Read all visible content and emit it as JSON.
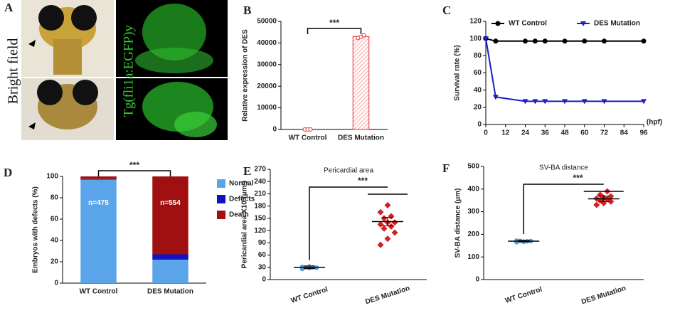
{
  "panel_a": {
    "label": "A",
    "bright_field": "Bright field",
    "fluorescence": "Tg(fli1a:EGFP)y"
  },
  "chart_data": [
    {
      "type": "bar",
      "label": "B",
      "ylabel": "Relative expression of DES",
      "categories": [
        "WT Control",
        "DES Mutation"
      ],
      "values": [
        0,
        43000
      ],
      "points": [
        [
          0,
          0,
          0
        ],
        [
          42300,
          42800,
          43600
        ]
      ],
      "color": "#e03030",
      "ylim": [
        0,
        50000
      ],
      "yticks": [
        0,
        10000,
        20000,
        30000,
        40000,
        50000
      ],
      "annotation": "***"
    },
    {
      "type": "line",
      "label": "C",
      "ylabel": "Survival rate (%)",
      "xlabel": "(hpf)",
      "x": [
        0,
        6,
        24,
        30,
        36,
        48,
        60,
        72,
        96
      ],
      "series": [
        {
          "name": "WT Control",
          "color": "#000000",
          "marker": "circle",
          "values": [
            100,
            97,
            97,
            97,
            97,
            97,
            97,
            97,
            97
          ]
        },
        {
          "name": "DES Mutation",
          "color": "#1c1cc8",
          "marker": "triangle-down",
          "values": [
            100,
            32,
            27,
            27,
            27,
            27,
            27,
            27,
            27
          ]
        }
      ],
      "xlim": [
        0,
        96
      ],
      "xticks": [
        0,
        12,
        24,
        36,
        48,
        60,
        72,
        84,
        96
      ],
      "ylim": [
        0,
        120
      ],
      "yticks": [
        0,
        20,
        40,
        60,
        80,
        100,
        120
      ]
    },
    {
      "type": "stacked-bar",
      "label": "D",
      "ylabel": "Embryos with defects (%)",
      "categories": [
        "WT Control",
        "DES Mutation"
      ],
      "series": [
        {
          "name": "Normal",
          "color": "#5aa5ea",
          "values": [
            97,
            22
          ]
        },
        {
          "name": "Defects",
          "color": "#1212c0",
          "values": [
            0.5,
            5
          ]
        },
        {
          "name": "Death",
          "color": "#a01010",
          "values": [
            2.5,
            73
          ]
        }
      ],
      "bar_labels": [
        "n=475",
        "n=554"
      ],
      "ylim": [
        0,
        100
      ],
      "yticks": [
        0,
        20,
        40,
        60,
        80,
        100
      ],
      "annotation": "***"
    },
    {
      "type": "dot",
      "label": "E",
      "title": "Pericardial area",
      "ylabel": "Pericardial area X10³(μm²)",
      "series": [
        {
          "name": "WT Control",
          "color": "#5b9bd5",
          "values": [
            26,
            28,
            29,
            30,
            30,
            31,
            32,
            29
          ],
          "mean": 30,
          "error": 3
        },
        {
          "name": "DES Mutation",
          "color": "#d42020",
          "values": [
            85,
            100,
            115,
            125,
            130,
            135,
            140,
            140,
            150,
            155,
            165,
            182
          ],
          "mean": 142,
          "error": 10
        }
      ],
      "ylim": [
        0,
        270
      ],
      "yticks": [
        0,
        30,
        60,
        90,
        120,
        150,
        180,
        210,
        240,
        270
      ],
      "annotation": "***"
    },
    {
      "type": "dot",
      "label": "F",
      "title": "SV-BA distance",
      "ylabel": "SV-BA distance (μm)",
      "series": [
        {
          "name": "WT Control",
          "color": "#5b9bd5",
          "values": [
            165,
            168,
            170,
            171,
            169,
            172,
            167,
            170
          ],
          "mean": 170,
          "error": 3
        },
        {
          "name": "DES Mutation",
          "color": "#d42020",
          "values": [
            330,
            338,
            345,
            350,
            355,
            358,
            362,
            368,
            375,
            390
          ],
          "mean": 357,
          "error": 12
        }
      ],
      "ylim": [
        0,
        500
      ],
      "yticks": [
        0,
        100,
        200,
        300,
        400,
        500
      ],
      "annotation": "***"
    }
  ]
}
